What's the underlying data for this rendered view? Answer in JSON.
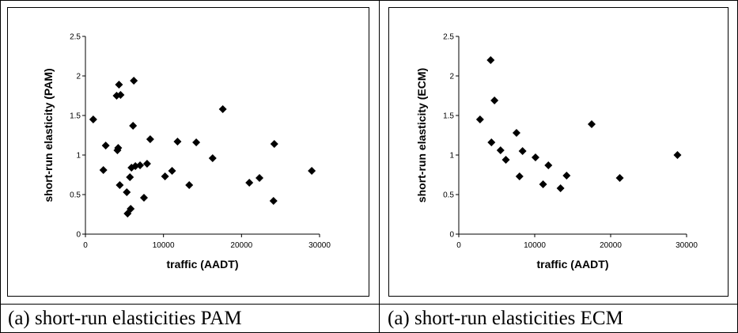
{
  "captions": {
    "left": "(a) short-run elasticities PAM",
    "right": "(a) short-run elasticities ECM"
  },
  "chart_data": [
    {
      "type": "scatter",
      "title": "",
      "xlabel": "traffic (AADT)",
      "ylabel": "short-run elasticity (PAM)",
      "xlim": [
        0,
        30000
      ],
      "ylim": [
        0,
        2.5
      ],
      "xticks": [
        "0",
        "10000",
        "20000",
        "30000"
      ],
      "yticks": [
        "0",
        "0.5",
        "1",
        "1.5",
        "2",
        "2.5"
      ],
      "grid": false,
      "legend": "none",
      "marker_color": "#000000",
      "points": [
        {
          "x": 1000,
          "y": 1.45
        },
        {
          "x": 2300,
          "y": 0.81
        },
        {
          "x": 2600,
          "y": 1.12
        },
        {
          "x": 4000,
          "y": 1.75
        },
        {
          "x": 4100,
          "y": 1.06
        },
        {
          "x": 4200,
          "y": 1.09
        },
        {
          "x": 4300,
          "y": 1.89
        },
        {
          "x": 4400,
          "y": 0.62
        },
        {
          "x": 4500,
          "y": 1.76
        },
        {
          "x": 5300,
          "y": 0.53
        },
        {
          "x": 5400,
          "y": 0.26
        },
        {
          "x": 5700,
          "y": 0.72
        },
        {
          "x": 5800,
          "y": 0.32
        },
        {
          "x": 5900,
          "y": 0.84
        },
        {
          "x": 6100,
          "y": 1.37
        },
        {
          "x": 6200,
          "y": 1.94
        },
        {
          "x": 6400,
          "y": 0.86
        },
        {
          "x": 7000,
          "y": 0.87
        },
        {
          "x": 7500,
          "y": 0.46
        },
        {
          "x": 7900,
          "y": 0.89
        },
        {
          "x": 8300,
          "y": 1.2
        },
        {
          "x": 10200,
          "y": 0.73
        },
        {
          "x": 11100,
          "y": 0.8
        },
        {
          "x": 11800,
          "y": 1.17
        },
        {
          "x": 13300,
          "y": 0.62
        },
        {
          "x": 14200,
          "y": 1.16
        },
        {
          "x": 16300,
          "y": 0.96
        },
        {
          "x": 17600,
          "y": 1.58
        },
        {
          "x": 21000,
          "y": 0.65
        },
        {
          "x": 22300,
          "y": 0.71
        },
        {
          "x": 24100,
          "y": 0.42
        },
        {
          "x": 24200,
          "y": 1.14
        },
        {
          "x": 29000,
          "y": 0.8
        }
      ]
    },
    {
      "type": "scatter",
      "title": "",
      "xlabel": "traffic (AADT)",
      "ylabel": "short-run elasticity (ECM)",
      "xlim": [
        0,
        30000
      ],
      "ylim": [
        0,
        2.5
      ],
      "xticks": [
        "0",
        "10000",
        "20000",
        "30000"
      ],
      "yticks": [
        "0",
        "0.5",
        "1",
        "1.5",
        "2",
        "2.5"
      ],
      "grid": false,
      "legend": "none",
      "marker_color": "#000000",
      "points": [
        {
          "x": 2800,
          "y": 1.45
        },
        {
          "x": 4200,
          "y": 2.2
        },
        {
          "x": 4300,
          "y": 1.16
        },
        {
          "x": 4700,
          "y": 1.69
        },
        {
          "x": 5500,
          "y": 1.06
        },
        {
          "x": 6200,
          "y": 0.94
        },
        {
          "x": 7600,
          "y": 1.28
        },
        {
          "x": 8000,
          "y": 0.73
        },
        {
          "x": 8400,
          "y": 1.05
        },
        {
          "x": 10100,
          "y": 0.97
        },
        {
          "x": 11100,
          "y": 0.63
        },
        {
          "x": 11800,
          "y": 0.87
        },
        {
          "x": 13400,
          "y": 0.58
        },
        {
          "x": 14200,
          "y": 0.74
        },
        {
          "x": 17500,
          "y": 1.39
        },
        {
          "x": 21200,
          "y": 0.71
        },
        {
          "x": 28800,
          "y": 1.0
        }
      ]
    }
  ]
}
